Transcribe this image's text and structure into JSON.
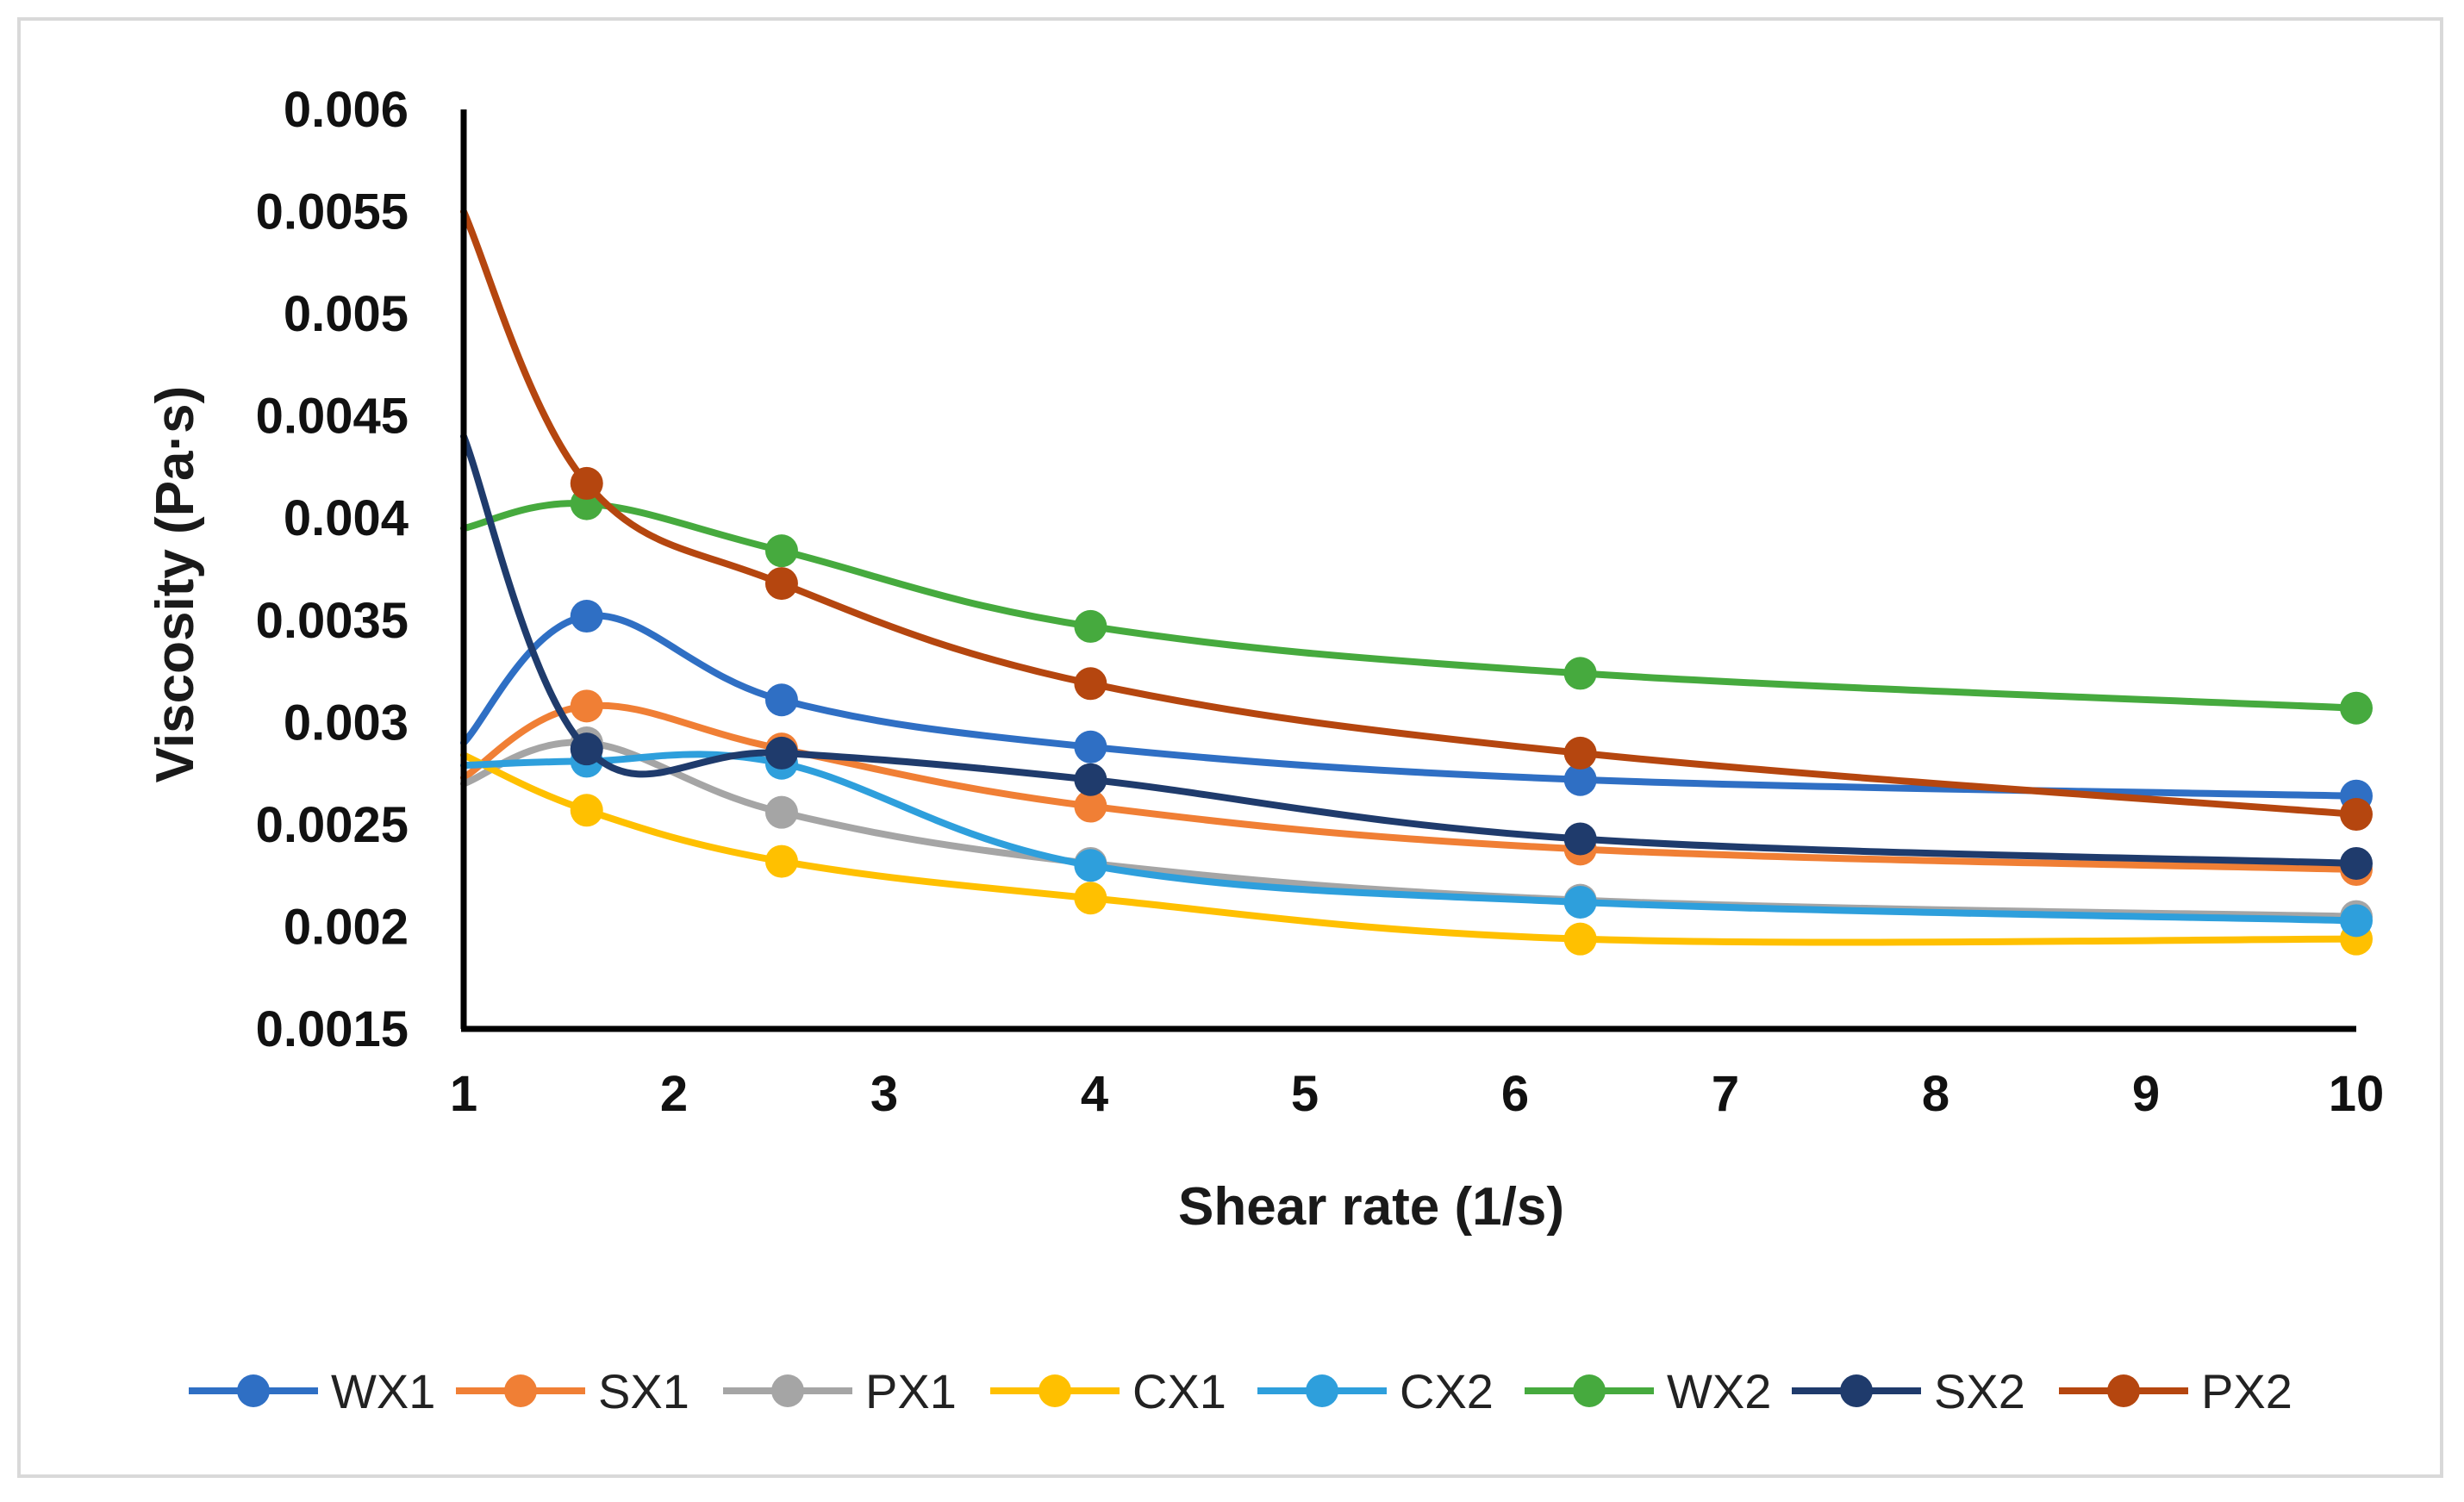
{
  "chart_data": {
    "type": "line",
    "title": "",
    "xlabel": "Shear rate (1/s)",
    "ylabel": "Viscosity (Pa·s)",
    "xlim": [
      1,
      10
    ],
    "ylim": [
      0.0015,
      0.006
    ],
    "x_ticks": [
      "1",
      "2",
      "3",
      "4",
      "5",
      "6",
      "7",
      "8",
      "9",
      "10"
    ],
    "y_ticks": [
      "0.006",
      "0.0055",
      "0.005",
      "0.0045",
      "0.004",
      "0.0035",
      "0.003",
      "0.0025",
      "0.002",
      "0.0015"
    ],
    "grid": false,
    "legend_position": "bottom",
    "x": [
      1,
      1.585,
      2.512,
      3.981,
      6.31,
      10
    ],
    "series": [
      {
        "name": "WX1",
        "color": "#2f6fc4",
        "values": [
          0.0029,
          0.00352,
          0.00311,
          0.00288,
          0.00272,
          0.00264
        ]
      },
      {
        "name": "SX1",
        "color": "#f07f35",
        "values": [
          0.00273,
          0.00308,
          0.00287,
          0.00259,
          0.00238,
          0.00228
        ]
      },
      {
        "name": "PX1",
        "color": "#a5a5a5",
        "values": [
          0.0027,
          0.0029,
          0.00256,
          0.00231,
          0.00213,
          0.00205
        ]
      },
      {
        "name": "CX1",
        "color": "#ffc000",
        "values": [
          0.00284,
          0.00257,
          0.00232,
          0.00214,
          0.00194,
          0.00194
        ]
      },
      {
        "name": "CX2",
        "color": "#2e9fdc",
        "values": [
          0.00279,
          0.00281,
          0.0028,
          0.0023,
          0.00212,
          0.00203
        ]
      },
      {
        "name": "WX2",
        "color": "#46aa3e",
        "values": [
          0.00395,
          0.00407,
          0.00384,
          0.00347,
          0.00324,
          0.00307
        ]
      },
      {
        "name": "SX2",
        "color": "#1f3b6c",
        "values": [
          0.0044,
          0.00287,
          0.00285,
          0.00272,
          0.00243,
          0.00231
        ]
      },
      {
        "name": "PX2",
        "color": "#b5460f",
        "values": [
          0.0055,
          0.00417,
          0.00368,
          0.00319,
          0.00285,
          0.00255
        ]
      }
    ]
  }
}
